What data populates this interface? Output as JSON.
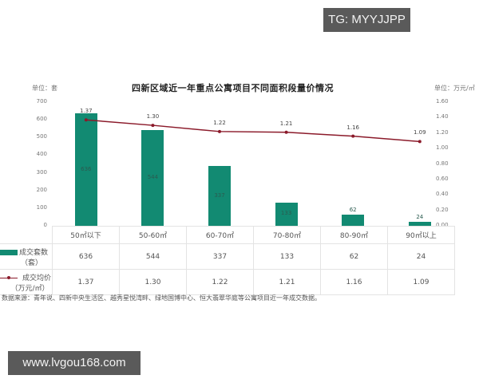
{
  "watermarks": {
    "top": "TG: MYYJJPP",
    "bottom": "www.lvgou168.com"
  },
  "header": {
    "unit_left": "单位：套",
    "title": "四新区域近一年重点公寓项目不同面积段量价情况",
    "unit_right": "单位：万元/㎡"
  },
  "axes": {
    "left_ticks": [
      "700",
      "600",
      "500",
      "400",
      "300",
      "200",
      "100",
      "0"
    ],
    "right_ticks": [
      "1.60",
      "1.40",
      "1.20",
      "1.00",
      "0.80",
      "0.60",
      "0.40",
      "0.20",
      "0.00"
    ]
  },
  "table": {
    "categories": [
      "50㎡以下",
      "50-60㎡",
      "60-70㎡",
      "70-80㎡",
      "80-90㎡",
      "90㎡以上"
    ],
    "row1_label_a": "成交套数",
    "row1_label_b": "（套）",
    "row1_values": [
      "636",
      "544",
      "337",
      "133",
      "62",
      "24"
    ],
    "row2_label_a": "成交均价",
    "row2_label_b": "（万元/㎡）",
    "row2_values": [
      "1.37",
      "1.30",
      "1.22",
      "1.21",
      "1.16",
      "1.09"
    ]
  },
  "bar_labels": [
    "636",
    "544",
    "337",
    "133",
    "62",
    "24"
  ],
  "point_labels": [
    "1.37",
    "1.30",
    "1.22",
    "1.21",
    "1.16",
    "1.09"
  ],
  "source": "数据来源：青年说、四新中央生活区、越秀星悦湾畔、绿地国博中心、恒大翡翠华庭等公寓项目近一年成交数据。",
  "colors": {
    "bar": "#128a72",
    "line": "#8b1a2a",
    "watermark_bg": "#5a5a5a"
  },
  "chart_data": {
    "type": "bar",
    "title": "四新区域近一年重点公寓项目不同面积段量价情况",
    "categories": [
      "50㎡以下",
      "50-60㎡",
      "60-70㎡",
      "70-80㎡",
      "80-90㎡",
      "90㎡以上"
    ],
    "series": [
      {
        "name": "成交套数（套）",
        "type": "bar",
        "axis": "left",
        "values": [
          636,
          544,
          337,
          133,
          62,
          24
        ]
      },
      {
        "name": "成交均价（万元/㎡）",
        "type": "line",
        "axis": "right",
        "values": [
          1.37,
          1.3,
          1.22,
          1.21,
          1.16,
          1.09
        ]
      }
    ],
    "xlabel": "",
    "ylabel": "单位：套",
    "y2label": "单位：万元/㎡",
    "ylim": [
      0,
      700
    ],
    "y2lim": [
      0,
      1.6
    ],
    "grid": false,
    "legend_position": "table-left",
    "annotations": [
      "数据来源：青年说、四新中央生活区、越秀星悦湾畔、绿地国博中心、恒大翡翠华庭等公寓项目近一年成交数据。"
    ]
  }
}
